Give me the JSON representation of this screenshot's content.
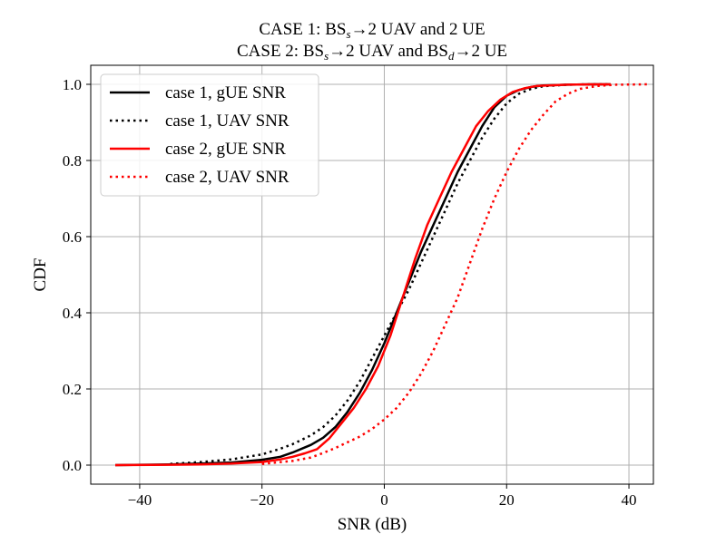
{
  "chart_data": {
    "type": "line",
    "title_line1": {
      "pre": "CASE 1: BS",
      "sub": "s",
      "post": "→2 UAV and 2 UE"
    },
    "title_line2": {
      "pre": "CASE 2: BS",
      "sub1": "s",
      "mid": "→2 UAV and BS",
      "sub2": "d",
      "post": "→2 UE"
    },
    "xlabel": "SNR (dB)",
    "ylabel": "CDF",
    "xlim": [
      -48,
      44
    ],
    "ylim": [
      -0.05,
      1.05
    ],
    "xticks": [
      -40,
      -20,
      0,
      20,
      40
    ],
    "xtick_labels": [
      "−40",
      "−20",
      "0",
      "20",
      "40"
    ],
    "yticks": [
      0.0,
      0.2,
      0.4,
      0.6,
      0.8,
      1.0
    ],
    "ytick_labels": [
      "0.0",
      "0.2",
      "0.4",
      "0.6",
      "0.8",
      "1.0"
    ],
    "grid": true,
    "legend_position": "top-left",
    "series": [
      {
        "name": "case 1, gUE SNR",
        "color": "#000000",
        "style": "solid",
        "x": [
          -44,
          -35,
          -30,
          -25,
          -20,
          -17,
          -15,
          -12,
          -10,
          -8,
          -6,
          -4,
          -2,
          0,
          2,
          4,
          6,
          8,
          10,
          12,
          14,
          16,
          18,
          20,
          22,
          24,
          26,
          30,
          34,
          37
        ],
        "y": [
          0.0,
          0.002,
          0.004,
          0.007,
          0.014,
          0.022,
          0.033,
          0.053,
          0.072,
          0.1,
          0.14,
          0.19,
          0.25,
          0.32,
          0.4,
          0.48,
          0.56,
          0.63,
          0.7,
          0.77,
          0.83,
          0.89,
          0.94,
          0.97,
          0.985,
          0.993,
          0.997,
          0.999,
          1.0,
          1.0
        ]
      },
      {
        "name": "case 1, UAV SNR",
        "color": "#000000",
        "style": "dotted",
        "x": [
          -35,
          -30,
          -25,
          -20,
          -17,
          -15,
          -12,
          -10,
          -8,
          -6,
          -4,
          -2,
          0,
          2,
          4,
          6,
          8,
          10,
          12,
          14,
          16,
          18,
          20,
          22,
          24,
          26,
          30,
          34,
          37
        ],
        "y": [
          0.003,
          0.008,
          0.015,
          0.028,
          0.043,
          0.055,
          0.078,
          0.1,
          0.13,
          0.17,
          0.22,
          0.28,
          0.34,
          0.4,
          0.46,
          0.53,
          0.6,
          0.67,
          0.74,
          0.8,
          0.86,
          0.91,
          0.95,
          0.975,
          0.988,
          0.995,
          0.999,
          1.0,
          1.0
        ]
      },
      {
        "name": "case 2, gUE SNR",
        "color": "#ff0000",
        "style": "solid",
        "x": [
          -44,
          -35,
          -30,
          -25,
          -20,
          -17,
          -15,
          -13,
          -11,
          -9,
          -7,
          -5,
          -3,
          -1,
          1,
          3,
          5,
          7,
          9,
          11,
          13,
          15,
          17,
          19,
          21,
          23,
          25,
          30,
          34,
          37
        ],
        "y": [
          0.0,
          0.001,
          0.002,
          0.004,
          0.008,
          0.015,
          0.022,
          0.031,
          0.042,
          0.07,
          0.11,
          0.15,
          0.2,
          0.26,
          0.34,
          0.44,
          0.54,
          0.63,
          0.7,
          0.77,
          0.83,
          0.89,
          0.93,
          0.96,
          0.98,
          0.99,
          0.996,
          0.999,
          1.0,
          1.0
        ]
      },
      {
        "name": "case 2, UAV SNR",
        "color": "#ff0000",
        "style": "dotted",
        "x": [
          -20,
          -15,
          -12,
          -10,
          -8,
          -6,
          -4,
          -2,
          0,
          2,
          4,
          6,
          8,
          10,
          12,
          14,
          16,
          18,
          20,
          22,
          24,
          26,
          28,
          30,
          32,
          35,
          38,
          43
        ],
        "y": [
          0.003,
          0.011,
          0.02,
          0.032,
          0.045,
          0.06,
          0.075,
          0.095,
          0.12,
          0.15,
          0.19,
          0.24,
          0.3,
          0.37,
          0.44,
          0.53,
          0.62,
          0.7,
          0.77,
          0.83,
          0.88,
          0.92,
          0.955,
          0.975,
          0.988,
          0.996,
          0.999,
          1.0
        ]
      }
    ]
  }
}
